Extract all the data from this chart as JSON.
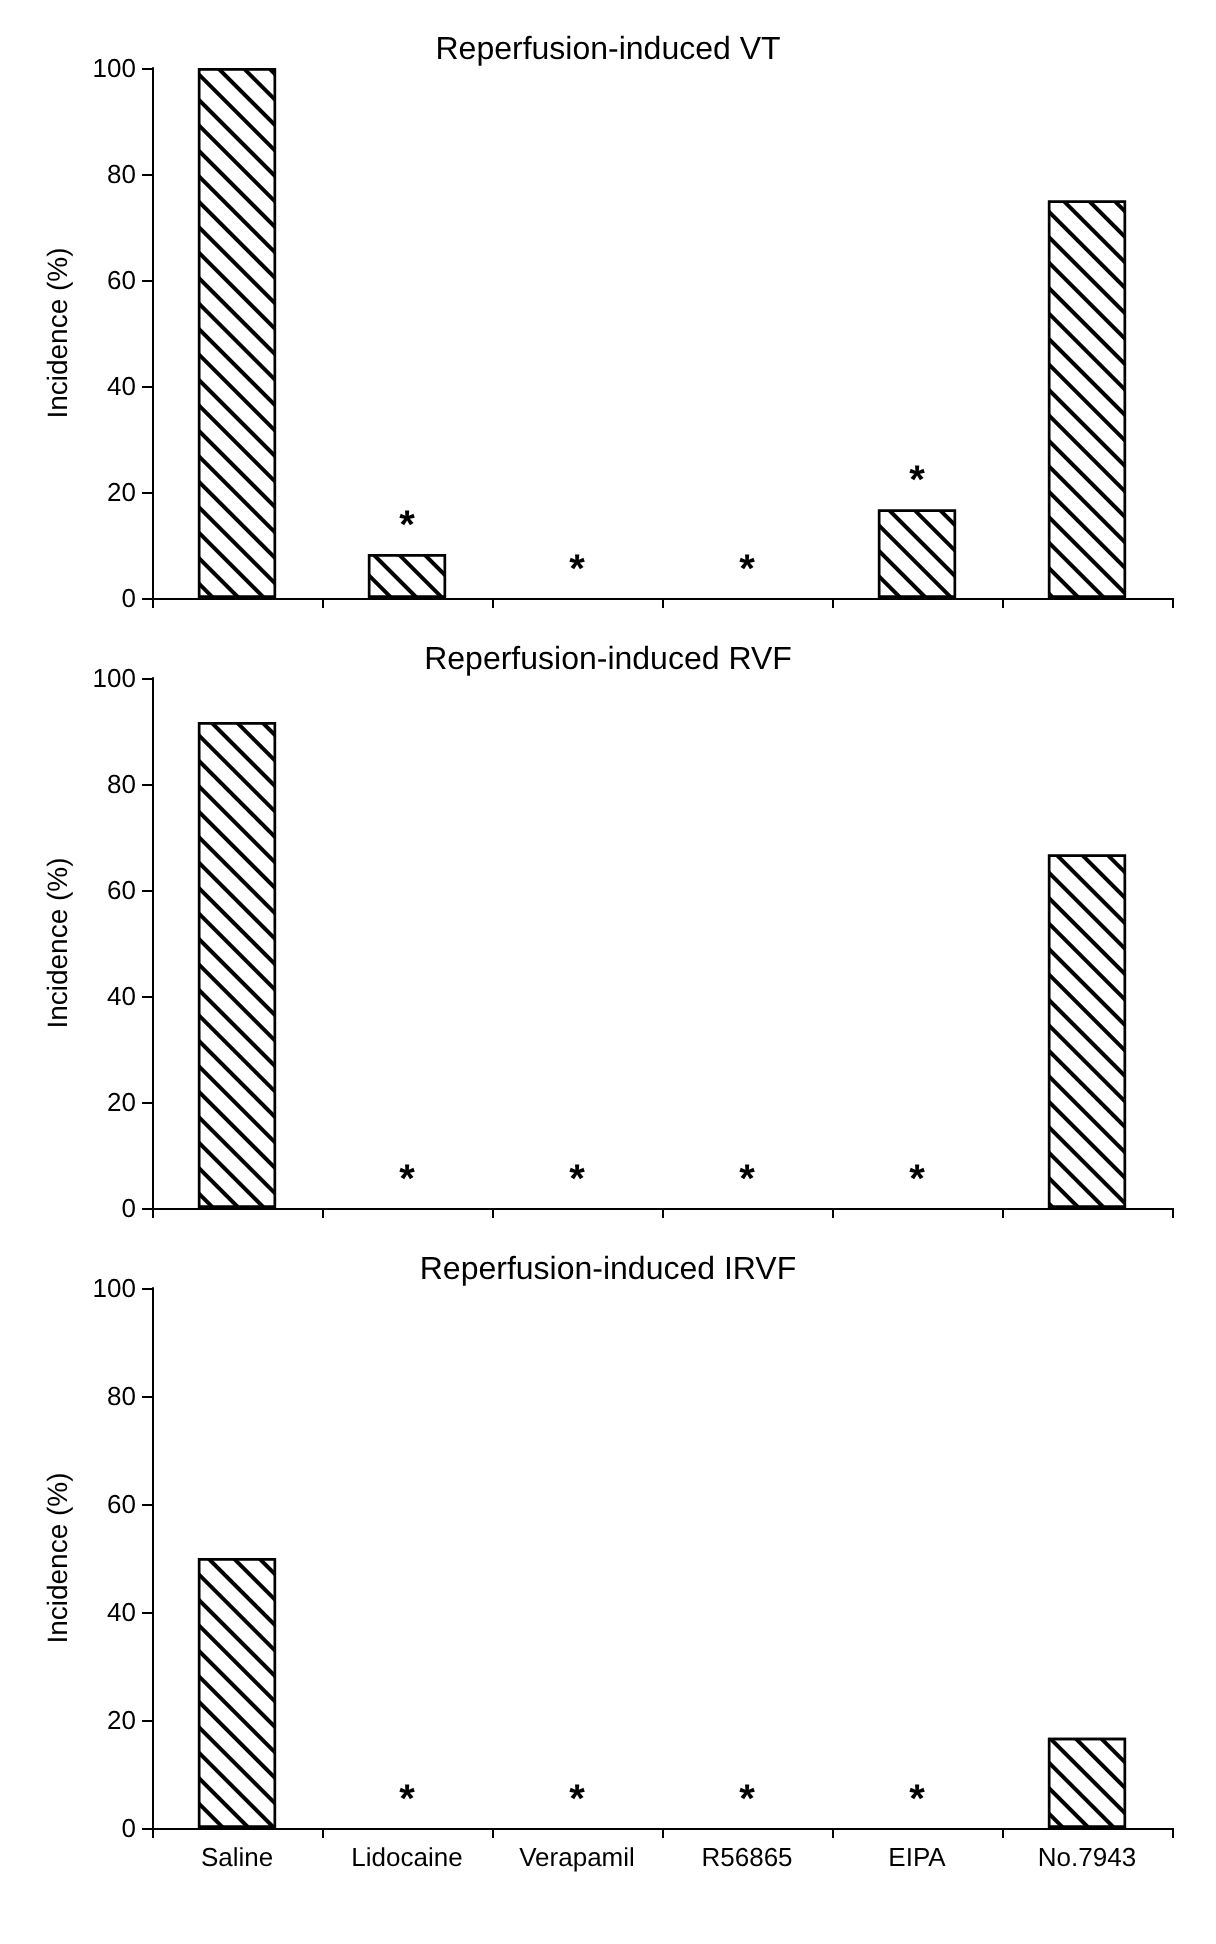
{
  "chart_data": [
    {
      "type": "bar",
      "title": "Reperfusion-induced VT",
      "ylabel": "Incidence (%)",
      "categories": [
        "Saline",
        "Lidocaine",
        "Verapamil",
        "R56865",
        "EIPA",
        "No.7943"
      ],
      "values": [
        100,
        8.3,
        0,
        0,
        16.7,
        75
      ],
      "color": "#ffffff",
      "ylim": [
        0,
        100
      ],
      "yticks": [
        0,
        20,
        40,
        60,
        80,
        100
      ],
      "grid": false,
      "tick_labels": "y",
      "annotations": [
        {
          "text": "*",
          "x": "Lidocaine",
          "y": 8.3
        },
        {
          "text": "*",
          "x": "Verapamil",
          "y": 0
        },
        {
          "text": "*",
          "x": "R56865",
          "y": 0
        },
        {
          "text": "*",
          "x": "EIPA",
          "y": 16.7
        }
      ]
    },
    {
      "type": "bar",
      "title": "Reperfusion-induced RVF",
      "ylabel": "Incidence (%)",
      "categories": [
        "Saline",
        "Lidocaine",
        "Verapamil",
        "R56865",
        "EIPA",
        "No.7943"
      ],
      "values": [
        91.7,
        0,
        0,
        0,
        0,
        66.7
      ],
      "color": "#ffffff",
      "ylim": [
        0,
        100
      ],
      "yticks": [
        0,
        20,
        40,
        60,
        80,
        100
      ],
      "grid": false,
      "tick_labels": "y",
      "annotations": [
        {
          "text": "*",
          "x": "Lidocaine",
          "y": 0
        },
        {
          "text": "*",
          "x": "Verapamil",
          "y": 0
        },
        {
          "text": "*",
          "x": "R56865",
          "y": 0
        },
        {
          "text": "*",
          "x": "EIPA",
          "y": 0
        }
      ]
    },
    {
      "type": "bar",
      "title": "Reperfusion-induced IRVF",
      "ylabel": "Incidence (%)",
      "categories": [
        "Saline",
        "Lidocaine",
        "Verapamil",
        "R56865",
        "EIPA",
        "No.7943"
      ],
      "values": [
        50,
        0,
        0,
        0,
        0,
        16.7
      ],
      "color": "#ffffff",
      "ylim": [
        0,
        100
      ],
      "yticks": [
        0,
        20,
        40,
        60,
        80,
        100
      ],
      "grid": false,
      "annotations": [
        {
          "text": "*",
          "x": "Lidocaine",
          "y": 0
        },
        {
          "text": "*",
          "x": "Verapamil",
          "y": 0
        },
        {
          "text": "*",
          "x": "R56865",
          "y": 0
        },
        {
          "text": "*",
          "x": "EIPA",
          "y": 0
        }
      ]
    }
  ]
}
